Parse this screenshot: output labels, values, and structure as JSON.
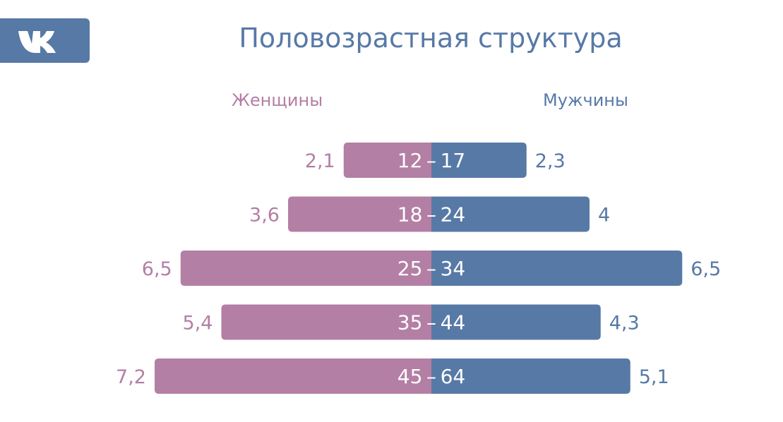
{
  "logo_text": "VK",
  "colors": {
    "female": "#b47fa4",
    "male": "#5779a6"
  },
  "chart_data": {
    "type": "bar",
    "title": "Половозрастная структура",
    "legend": [
      "Женщины",
      "Мужчины"
    ],
    "categories": [
      "12–17",
      "18–24",
      "25–34",
      "35–44",
      "45–64"
    ],
    "series": [
      {
        "name": "Женщины",
        "values": [
          2.1,
          3.6,
          6.5,
          5.4,
          7.2
        ],
        "labels": [
          "2,1",
          "3,6",
          "6,5",
          "5,4",
          "7,2"
        ]
      },
      {
        "name": "Мужчины",
        "values": [
          2.3,
          4,
          6.5,
          4.3,
          5.1
        ],
        "labels": [
          "2,3",
          "4",
          "6,5",
          "4,3",
          "5,1"
        ]
      }
    ]
  }
}
